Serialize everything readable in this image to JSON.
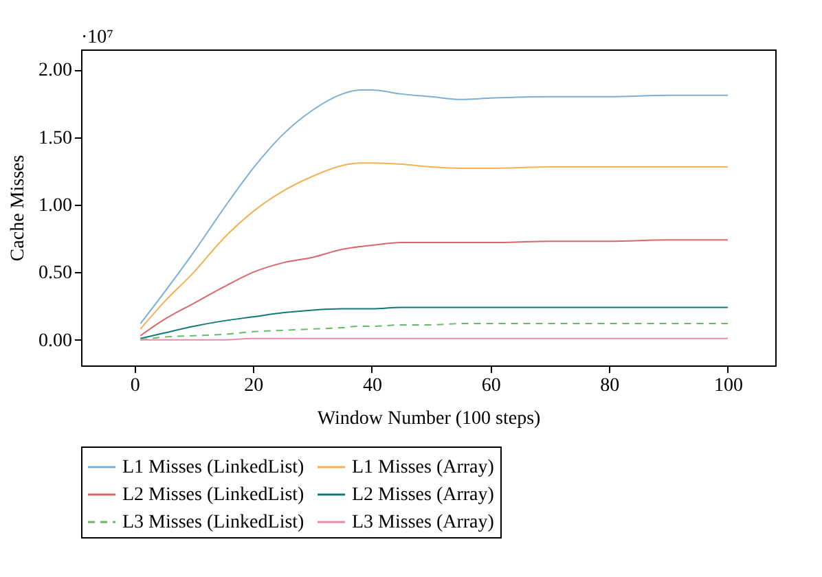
{
  "chart_data": {
    "type": "line",
    "xlabel": "Window Number (100 steps)",
    "ylabel": "Cache Misses",
    "annotations": [
      "·10⁷"
    ],
    "x": [
      1,
      5,
      10,
      15,
      20,
      25,
      30,
      35,
      38,
      40,
      45,
      50,
      55,
      60,
      70,
      80,
      90,
      100
    ],
    "xlim": [
      -9,
      108
    ],
    "xticks": [
      0,
      20,
      40,
      60,
      80,
      100
    ],
    "ylim": [
      -0.19,
      2.15
    ],
    "yticks": [
      {
        "value": 0,
        "label": "0.00"
      },
      {
        "value": 0.5,
        "label": "0.50"
      },
      {
        "value": 1,
        "label": "1.00"
      },
      {
        "value": 1.5,
        "label": "1.50"
      },
      {
        "value": 2,
        "label": "2.00"
      }
    ],
    "grid": false,
    "legend": "bottom",
    "marker": "none",
    "series": [
      {
        "name": "L1 Misses (LinkedList)",
        "color": "#7bafd4",
        "line_style": "solid",
        "values": [
          0.12,
          0.35,
          0.65,
          0.97,
          1.27,
          1.52,
          1.7,
          1.82,
          1.85,
          1.85,
          1.82,
          1.8,
          1.78,
          1.79,
          1.8,
          1.8,
          1.81,
          1.81
        ]
      },
      {
        "name": "L1 Misses (Array)",
        "color": "#f5b050",
        "line_style": "solid",
        "values": [
          0.08,
          0.28,
          0.5,
          0.75,
          0.95,
          1.1,
          1.21,
          1.29,
          1.31,
          1.31,
          1.3,
          1.28,
          1.27,
          1.27,
          1.28,
          1.28,
          1.28,
          1.28
        ]
      },
      {
        "name": "L2 Misses (LinkedList)",
        "color": "#d9666a",
        "line_style": "solid",
        "values": [
          0.03,
          0.15,
          0.27,
          0.39,
          0.5,
          0.57,
          0.61,
          0.67,
          0.69,
          0.7,
          0.72,
          0.72,
          0.72,
          0.72,
          0.73,
          0.73,
          0.74,
          0.74
        ]
      },
      {
        "name": "L2 Misses (Array)",
        "color": "#117878",
        "line_style": "solid",
        "values": [
          0.01,
          0.05,
          0.1,
          0.14,
          0.17,
          0.2,
          0.22,
          0.23,
          0.23,
          0.23,
          0.24,
          0.24,
          0.24,
          0.24,
          0.24,
          0.24,
          0.24,
          0.24
        ]
      },
      {
        "name": "L3 Misses (LinkedList)",
        "color": "#66bb66",
        "line_style": "dashed",
        "values": [
          0.0,
          0.02,
          0.03,
          0.04,
          0.06,
          0.07,
          0.08,
          0.09,
          0.1,
          0.1,
          0.11,
          0.11,
          0.12,
          0.12,
          0.12,
          0.12,
          0.12,
          0.12
        ]
      },
      {
        "name": "L3 Misses (Array)",
        "color": "#e88aaa",
        "line_style": "solid",
        "values": [
          0.0,
          0.0,
          0.0,
          0.0,
          0.01,
          0.01,
          0.01,
          0.01,
          0.01,
          0.01,
          0.01,
          0.01,
          0.01,
          0.01,
          0.01,
          0.01,
          0.01,
          0.01
        ]
      }
    ]
  }
}
